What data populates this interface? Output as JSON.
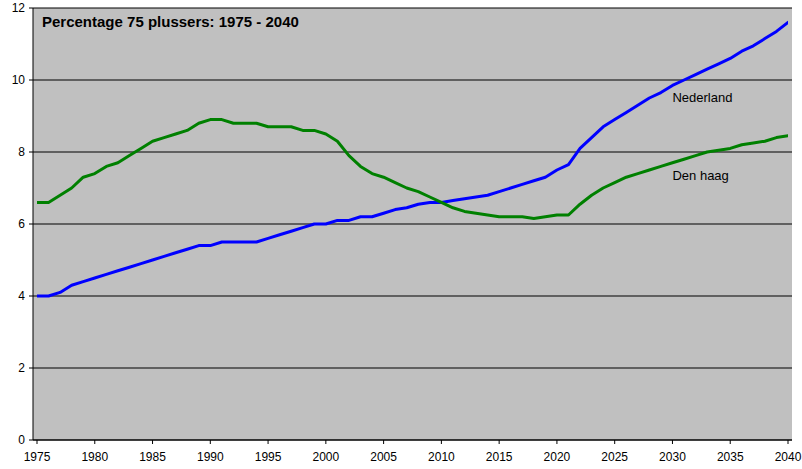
{
  "chart_data": {
    "type": "line",
    "title": "Percentage 75 plussers: 1975 - 2040",
    "x": [
      1975,
      1976,
      1977,
      1978,
      1979,
      1980,
      1981,
      1982,
      1983,
      1984,
      1985,
      1986,
      1987,
      1988,
      1989,
      1990,
      1991,
      1992,
      1993,
      1994,
      1995,
      1996,
      1997,
      1998,
      1999,
      2000,
      2001,
      2002,
      2003,
      2004,
      2005,
      2006,
      2007,
      2008,
      2009,
      2010,
      2011,
      2012,
      2013,
      2014,
      2015,
      2016,
      2017,
      2018,
      2019,
      2020,
      2021,
      2022,
      2023,
      2024,
      2025,
      2026,
      2027,
      2028,
      2029,
      2030,
      2031,
      2032,
      2033,
      2034,
      2035,
      2036,
      2037,
      2038,
      2039,
      2040
    ],
    "series": [
      {
        "name": "Nederland",
        "color": "#0000ff",
        "values": [
          4.0,
          4.0,
          4.1,
          4.3,
          4.4,
          4.5,
          4.6,
          4.7,
          4.8,
          4.9,
          5.0,
          5.1,
          5.2,
          5.3,
          5.4,
          5.4,
          5.5,
          5.5,
          5.5,
          5.5,
          5.6,
          5.7,
          5.8,
          5.9,
          6.0,
          6.0,
          6.1,
          6.1,
          6.2,
          6.2,
          6.3,
          6.4,
          6.45,
          6.55,
          6.6,
          6.6,
          6.65,
          6.7,
          6.75,
          6.8,
          6.9,
          7.0,
          7.1,
          7.2,
          7.3,
          7.5,
          7.65,
          8.1,
          8.4,
          8.7,
          8.9,
          9.1,
          9.3,
          9.5,
          9.65,
          9.85,
          10.0,
          10.15,
          10.3,
          10.45,
          10.6,
          10.8,
          10.95,
          11.15,
          11.35,
          11.6
        ]
      },
      {
        "name": "Den haag",
        "color": "#008000",
        "values": [
          6.6,
          6.6,
          6.8,
          7.0,
          7.3,
          7.4,
          7.6,
          7.7,
          7.9,
          8.1,
          8.3,
          8.4,
          8.5,
          8.6,
          8.8,
          8.9,
          8.9,
          8.8,
          8.8,
          8.8,
          8.7,
          8.7,
          8.7,
          8.6,
          8.6,
          8.5,
          8.3,
          7.9,
          7.6,
          7.4,
          7.3,
          7.15,
          7.0,
          6.9,
          6.75,
          6.6,
          6.45,
          6.35,
          6.3,
          6.25,
          6.2,
          6.2,
          6.2,
          6.15,
          6.2,
          6.25,
          6.25,
          6.55,
          6.8,
          7.0,
          7.15,
          7.3,
          7.4,
          7.5,
          7.6,
          7.7,
          7.8,
          7.9,
          8.0,
          8.05,
          8.1,
          8.2,
          8.25,
          8.3,
          8.4,
          8.45
        ]
      }
    ],
    "xlim": [
      1975,
      2040
    ],
    "xticks": [
      1975,
      1980,
      1985,
      1990,
      1995,
      2000,
      2005,
      2010,
      2015,
      2020,
      2025,
      2030,
      2035,
      2040
    ],
    "ylim": [
      0,
      12
    ],
    "yticks": [
      0,
      2,
      4,
      6,
      8,
      10,
      12
    ],
    "grid": true
  }
}
